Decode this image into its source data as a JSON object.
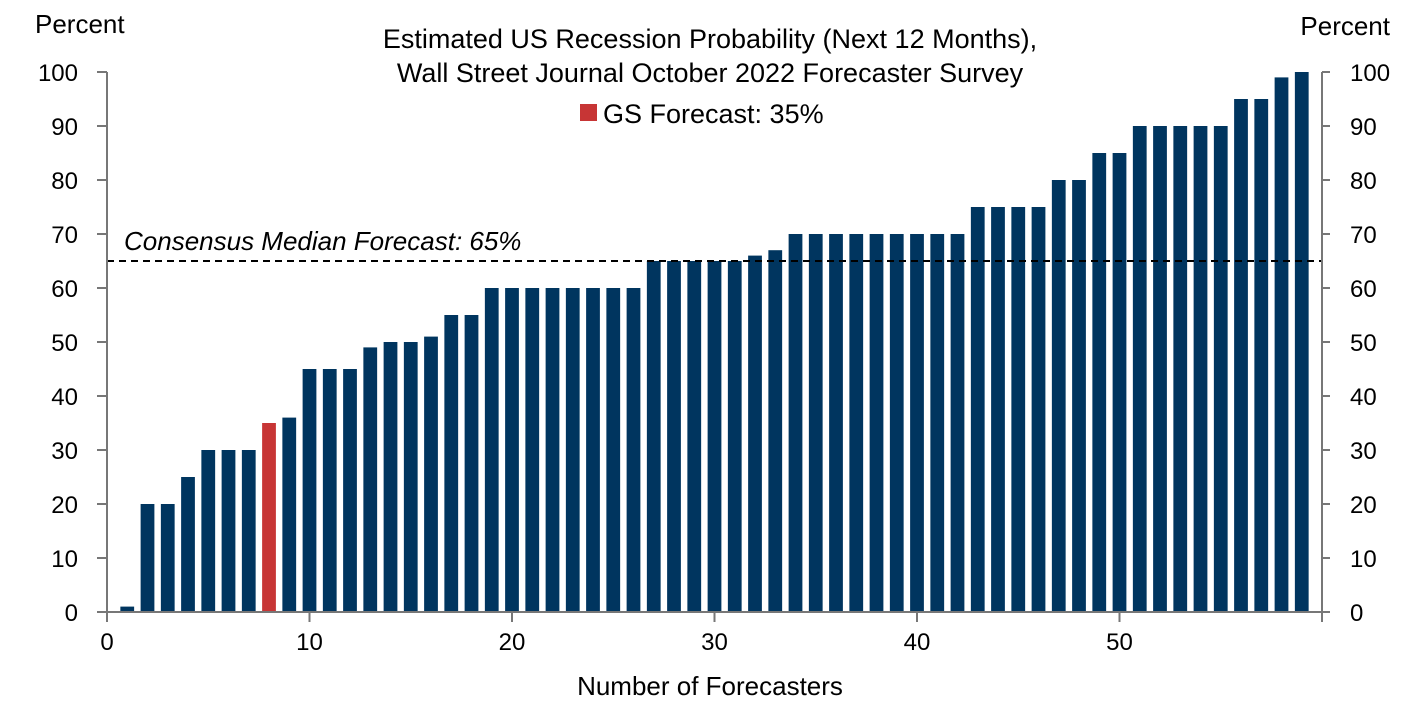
{
  "chart_data": {
    "type": "bar",
    "title_lines": [
      "Estimated US Recession Probability (Next 12 Months),",
      "Wall Street Journal October 2022 Forecaster Survey"
    ],
    "legend": [
      {
        "label": "GS Forecast: 35%",
        "color": "#c73535"
      }
    ],
    "xlabel": "Number of Forecasters",
    "ylabel_left": "Percent",
    "ylabel_right": "Percent",
    "xlim": [
      0,
      60
    ],
    "ylim": [
      0,
      100
    ],
    "x_ticks": [
      0,
      10,
      20,
      30,
      40,
      50
    ],
    "y_ticks": [
      0,
      10,
      20,
      30,
      40,
      50,
      60,
      70,
      80,
      90,
      100
    ],
    "bar_color": "#00355f",
    "highlight_color": "#c73535",
    "highlight_x": 8,
    "reference_line": {
      "label": "Consensus Median Forecast: 65%",
      "value": 65,
      "style": "dashed"
    },
    "x": [
      1,
      2,
      3,
      4,
      5,
      6,
      7,
      8,
      9,
      10,
      11,
      12,
      13,
      14,
      15,
      16,
      17,
      18,
      19,
      20,
      21,
      22,
      23,
      24,
      25,
      26,
      27,
      28,
      29,
      30,
      31,
      32,
      33,
      34,
      35,
      36,
      37,
      38,
      39,
      40,
      41,
      42,
      43,
      44,
      45,
      46,
      47,
      48,
      49,
      50,
      51,
      52,
      53,
      54,
      55,
      56,
      57,
      58,
      59
    ],
    "values": [
      1,
      20,
      20,
      25,
      30,
      30,
      30,
      35,
      36,
      45,
      45,
      45,
      49,
      50,
      50,
      51,
      55,
      55,
      60,
      60,
      60,
      60,
      60,
      60,
      60,
      60,
      65,
      65,
      65,
      65,
      65,
      66,
      67,
      70,
      70,
      70,
      70,
      70,
      70,
      70,
      70,
      70,
      75,
      75,
      75,
      75,
      80,
      80,
      85,
      85,
      90,
      90,
      90,
      90,
      90,
      95,
      95,
      99,
      100
    ]
  }
}
